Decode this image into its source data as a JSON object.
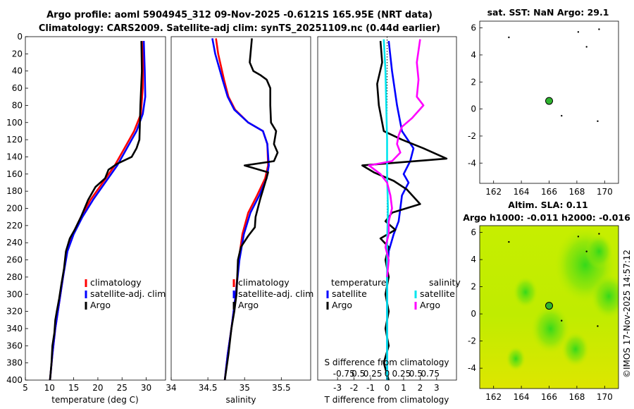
{
  "header": {
    "title_line1": "Argo profile: aoml 5904945_312 09-Nov-2025 -0.6121S 165.95E (NRT data)",
    "title_line2": "Climatology: CARS2009. Satellite-adj clim: synTS_20251109.nc (0.44d earlier)"
  },
  "side_note": "©IMOS 17-Nov-2025 14:57:12",
  "colors": {
    "clim": "#ff0000",
    "sat": "#0000ff",
    "argo": "#000000",
    "sat_sal": "#00e5ee",
    "argo_sal": "#ff00ff"
  },
  "chart_data": [
    {
      "type": "line",
      "id": "temperature",
      "xlabel": "temperature (deg C)",
      "xlim": [
        5,
        34
      ],
      "ylim": [
        0,
        400
      ],
      "xticks": [
        "5",
        "10",
        "15",
        "20",
        "25",
        "30"
      ],
      "yticks": [
        "0",
        "20",
        "40",
        "60",
        "80",
        "100",
        "120",
        "140",
        "160",
        "180",
        "200",
        "220",
        "240",
        "260",
        "280",
        "300",
        "320",
        "340",
        "360",
        "380",
        "400"
      ],
      "legend": [
        "climatology",
        "satellite-adj. clim",
        "Argo"
      ],
      "series": [
        {
          "name": "climatology",
          "color": "#ff0000",
          "points": [
            [
              29.4,
              5
            ],
            [
              29.3,
              60
            ],
            [
              28.9,
              90
            ],
            [
              27.5,
              110
            ],
            [
              25.5,
              130
            ],
            [
              23.5,
              150
            ],
            [
              21,
              170
            ],
            [
              18.5,
              190
            ],
            [
              16.5,
              210
            ],
            [
              14.8,
              230
            ],
            [
              13.6,
              250
            ],
            [
              12.8,
              280
            ],
            [
              12,
              310
            ],
            [
              11.2,
              340
            ],
            [
              10.6,
              370
            ],
            [
              10.1,
              400
            ]
          ]
        },
        {
          "name": "satellite-adj. clim",
          "color": "#0000ff",
          "points": [
            [
              29.5,
              5
            ],
            [
              29.7,
              40
            ],
            [
              29.8,
              70
            ],
            [
              29.3,
              90
            ],
            [
              28,
              110
            ],
            [
              26,
              130
            ],
            [
              24,
              150
            ],
            [
              21.5,
              170
            ],
            [
              19,
              190
            ],
            [
              16.8,
              210
            ],
            [
              15,
              230
            ],
            [
              13.7,
              250
            ],
            [
              12.8,
              280
            ],
            [
              12,
              310
            ],
            [
              11.2,
              340
            ],
            [
              10.6,
              370
            ],
            [
              10.1,
              400
            ]
          ]
        },
        {
          "name": "Argo",
          "color": "#000000",
          "points": [
            [
              29,
              5
            ],
            [
              29.1,
              40
            ],
            [
              28.8,
              80
            ],
            [
              28.7,
              100
            ],
            [
              28.6,
              120
            ],
            [
              28,
              130
            ],
            [
              27,
              140
            ],
            [
              24,
              148
            ],
            [
              22.2,
              155
            ],
            [
              21.5,
              165
            ],
            [
              19.5,
              175
            ],
            [
              18,
              190
            ],
            [
              16.5,
              210
            ],
            [
              15.2,
              225
            ],
            [
              14.2,
              235
            ],
            [
              13.4,
              250
            ],
            [
              13,
              270
            ],
            [
              12.4,
              290
            ],
            [
              12,
              305
            ],
            [
              11.5,
              320
            ],
            [
              11.2,
              330
            ],
            [
              11,
              345
            ],
            [
              10.6,
              360
            ],
            [
              10.4,
              380
            ],
            [
              10.1,
              400
            ]
          ]
        }
      ]
    },
    {
      "type": "line",
      "id": "salinity",
      "xlabel": "salinity",
      "xlim": [
        34,
        35.9
      ],
      "ylim": [
        0,
        400
      ],
      "xticks": [
        "34",
        "34.5",
        "35",
        "35.5"
      ],
      "legend": [
        "climatology",
        "satellite-adj. clim",
        "Argo"
      ],
      "series": [
        {
          "name": "climatology",
          "color": "#ff0000",
          "points": [
            [
              34.61,
              2
            ],
            [
              34.64,
              20
            ],
            [
              34.72,
              50
            ],
            [
              34.78,
              70
            ],
            [
              34.87,
              85
            ],
            [
              35.05,
              100
            ],
            [
              35.25,
              110
            ],
            [
              35.31,
              125
            ],
            [
              35.32,
              150
            ],
            [
              35.28,
              165
            ],
            [
              35.17,
              185
            ],
            [
              35.05,
              205
            ],
            [
              34.97,
              230
            ],
            [
              34.92,
              260
            ],
            [
              34.88,
              300
            ],
            [
              34.82,
              340
            ],
            [
              34.77,
              370
            ],
            [
              34.73,
              400
            ]
          ]
        },
        {
          "name": "satellite-adj. clim",
          "color": "#0000ff",
          "points": [
            [
              34.56,
              2
            ],
            [
              34.6,
              20
            ],
            [
              34.7,
              50
            ],
            [
              34.77,
              70
            ],
            [
              34.86,
              85
            ],
            [
              35.05,
              100
            ],
            [
              35.25,
              110
            ],
            [
              35.31,
              125
            ],
            [
              35.33,
              150
            ],
            [
              35.3,
              165
            ],
            [
              35.2,
              185
            ],
            [
              35.08,
              205
            ],
            [
              34.99,
              230
            ],
            [
              34.93,
              260
            ],
            [
              34.88,
              300
            ],
            [
              34.82,
              340
            ],
            [
              34.77,
              370
            ],
            [
              34.73,
              400
            ]
          ]
        },
        {
          "name": "Argo",
          "color": "#000000",
          "points": [
            [
              35.1,
              2
            ],
            [
              35.07,
              30
            ],
            [
              35.12,
              40
            ],
            [
              35.22,
              45
            ],
            [
              35.3,
              50
            ],
            [
              35.35,
              60
            ],
            [
              35.35,
              80
            ],
            [
              35.36,
              100
            ],
            [
              35.43,
              110
            ],
            [
              35.4,
              125
            ],
            [
              35.45,
              135
            ],
            [
              35.4,
              145
            ],
            [
              35.0,
              150
            ],
            [
              35.32,
              158
            ],
            [
              35.28,
              170
            ],
            [
              35.21,
              190
            ],
            [
              35.15,
              210
            ],
            [
              35.14,
              222
            ],
            [
              35.05,
              232
            ],
            [
              34.95,
              245
            ],
            [
              34.91,
              260
            ],
            [
              34.9,
              280
            ],
            [
              34.89,
              300
            ],
            [
              34.86,
              320
            ],
            [
              34.82,
              340
            ],
            [
              34.78,
              370
            ],
            [
              34.73,
              400
            ]
          ]
        }
      ]
    },
    {
      "type": "line",
      "id": "difference",
      "xlabel": "T difference from climatology",
      "xlim": [
        -4.2,
        4.2
      ],
      "ylim": [
        0,
        400
      ],
      "xticks": [
        "-3",
        "-2",
        "-1",
        "0",
        "1",
        "2",
        "3"
      ],
      "secondary_xlabel": "S difference from climatology",
      "secondary_xticks": [
        "-0.75",
        "0.5",
        "0.25",
        "0",
        "0.25",
        "0.5",
        "0.75"
      ],
      "legend_left": {
        "title": "temperature",
        "entries": [
          "satellite",
          "Argo"
        ]
      },
      "legend_right": {
        "title": "salinity",
        "entries": [
          "satellite",
          "Argo"
        ]
      },
      "series": [
        {
          "name": "T satellite",
          "color": "#0000ff",
          "points": [
            [
              0.1,
              5
            ],
            [
              0.3,
              40
            ],
            [
              0.6,
              80
            ],
            [
              0.9,
              110
            ],
            [
              1.6,
              130
            ],
            [
              1.4,
              145
            ],
            [
              1.0,
              160
            ],
            [
              1.3,
              170
            ],
            [
              0.9,
              185
            ],
            [
              0.8,
              200
            ],
            [
              0.7,
              215
            ],
            [
              0.4,
              230
            ],
            [
              0.1,
              250
            ],
            [
              0,
              280
            ],
            [
              0,
              320
            ],
            [
              0,
              360
            ],
            [
              0,
              400
            ]
          ]
        },
        {
          "name": "T Argo",
          "color": "#000000",
          "points": [
            [
              -0.4,
              5
            ],
            [
              -0.3,
              30
            ],
            [
              -0.6,
              55
            ],
            [
              -0.5,
              80
            ],
            [
              -0.3,
              100
            ],
            [
              -0.2,
              110
            ],
            [
              0.9,
              120
            ],
            [
              2.2,
              130
            ],
            [
              3.6,
              142
            ],
            [
              -1.5,
              150
            ],
            [
              -0.8,
              158
            ],
            [
              0.4,
              168
            ],
            [
              1.2,
              178
            ],
            [
              2.0,
              195
            ],
            [
              0.3,
              205
            ],
            [
              -0.1,
              215
            ],
            [
              0.5,
              225
            ],
            [
              -0.4,
              235
            ],
            [
              0.1,
              245
            ],
            [
              -0.1,
              260
            ],
            [
              0.1,
              280
            ],
            [
              -0.1,
              300
            ],
            [
              0.1,
              320
            ],
            [
              -0.1,
              340
            ],
            [
              0.1,
              360
            ],
            [
              -0.2,
              380
            ],
            [
              0.1,
              400
            ]
          ]
        },
        {
          "name": "S satellite",
          "color": "#00e5ee",
          "points": [
            [
              -0.2,
              3
            ],
            [
              -0.1,
              40
            ],
            [
              -0.05,
              80
            ],
            [
              0,
              120
            ],
            [
              0,
              160
            ],
            [
              0.05,
              200
            ],
            [
              0,
              240
            ],
            [
              0,
              280
            ],
            [
              0,
              320
            ],
            [
              0,
              360
            ],
            [
              0,
              400
            ]
          ]
        },
        {
          "name": "S Argo",
          "color": "#ff00ff",
          "points": [
            [
              2.0,
              3
            ],
            [
              1.8,
              30
            ],
            [
              1.9,
              50
            ],
            [
              1.8,
              70
            ],
            [
              2.2,
              80
            ],
            [
              1.5,
              95
            ],
            [
              0.9,
              105
            ],
            [
              0.7,
              115
            ],
            [
              0.6,
              125
            ],
            [
              0.8,
              135
            ],
            [
              0.3,
              145
            ],
            [
              -1.1,
              150
            ],
            [
              -0.4,
              160
            ],
            [
              0.0,
              170
            ],
            [
              0.2,
              185
            ],
            [
              0.3,
              200
            ],
            [
              0.1,
              215
            ],
            [
              0.1,
              230
            ],
            [
              -0.1,
              245
            ],
            [
              0.1,
              260
            ],
            [
              0,
              280
            ]
          ]
        }
      ]
    },
    {
      "type": "scatter",
      "id": "sst_map",
      "title": "sat. SST: NaN Argo: 29.1",
      "xlim": [
        161,
        171
      ],
      "ylim": [
        -5.5,
        6.5
      ],
      "xticks": [
        "162",
        "164",
        "166",
        "168",
        "170"
      ],
      "yticks": [
        "6",
        "4",
        "2",
        "0",
        "-2",
        "-4"
      ],
      "argo_position": [
        166,
        0.6
      ],
      "dots": [
        [
          163.1,
          5.3
        ],
        [
          168.1,
          5.7
        ],
        [
          168.7,
          4.6
        ],
        [
          169.6,
          5.9
        ],
        [
          166.9,
          -0.5
        ],
        [
          169.5,
          -0.9
        ]
      ]
    },
    {
      "type": "heatmap",
      "id": "sla_map",
      "title_line1": "Altim. SLA: 0.11",
      "title_line2": "Argo h1000: -0.011 h2000: -0.016",
      "xlim": [
        161,
        171
      ],
      "ylim": [
        -5.5,
        6.5
      ],
      "xticks": [
        "162",
        "164",
        "166",
        "168",
        "170"
      ],
      "yticks": [
        "6",
        "4",
        "2",
        "0",
        "-2",
        "-4"
      ],
      "argo_position": [
        166,
        0.6
      ],
      "dots": [
        [
          163.1,
          5.3
        ],
        [
          168.1,
          5.7
        ],
        [
          168.7,
          4.6
        ],
        [
          169.6,
          5.9
        ],
        [
          166.9,
          -0.5
        ],
        [
          169.5,
          -0.9
        ]
      ],
      "blobs": [
        [
          168.6,
          3.6,
          2.2
        ],
        [
          170.3,
          1.3,
          1.3
        ],
        [
          166.1,
          -1.1,
          1.4
        ],
        [
          164.3,
          1.6,
          0.9
        ],
        [
          167.9,
          -2.6,
          1.0
        ],
        [
          163.6,
          -3.3,
          0.7
        ],
        [
          169.6,
          4.6,
          1.0
        ]
      ]
    }
  ]
}
